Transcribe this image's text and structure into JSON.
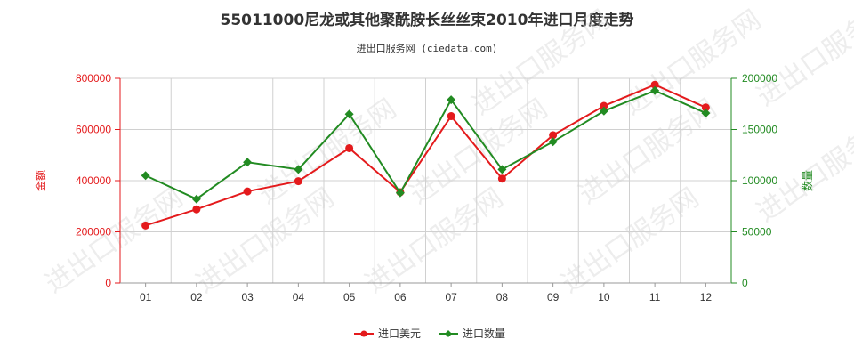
{
  "title": "55011000尼龙或其他聚酰胺长丝丝束2010年进口月度走势",
  "subtitle": "进出口服务网 (ciedata.com)",
  "colors": {
    "value": "#e41a1c",
    "qty": "#228b22",
    "grid": "#d0d0d0",
    "axis_left": "#e41a1c",
    "axis_right": "#228b22"
  },
  "chart_data": {
    "type": "line",
    "categories": [
      "01",
      "02",
      "03",
      "04",
      "05",
      "06",
      "07",
      "08",
      "09",
      "10",
      "11",
      "12"
    ],
    "series": [
      {
        "name": "进口美元",
        "axis": "left",
        "color": "#e41a1c",
        "marker": "circle",
        "values": [
          225000,
          288000,
          358000,
          398000,
          527000,
          355000,
          652000,
          408000,
          578000,
          692000,
          775000,
          686000
        ]
      },
      {
        "name": "进口数量",
        "axis": "right",
        "color": "#228b22",
        "marker": "diamond",
        "values": [
          105000,
          82000,
          118000,
          111000,
          165000,
          88000,
          179000,
          111000,
          138000,
          168000,
          188000,
          166000
        ]
      }
    ],
    "left_axis": {
      "label": "金额",
      "ylim": [
        0,
        800000
      ],
      "ticks": [
        "0",
        "200000",
        "400000",
        "600000",
        "800000"
      ]
    },
    "right_axis": {
      "label": "数量",
      "ylim": [
        0,
        200000
      ],
      "ticks": [
        "0",
        "50000",
        "100000",
        "150000",
        "200000"
      ]
    },
    "grid": true,
    "legend": "bottom-center"
  },
  "watermark": "进出口服务网"
}
